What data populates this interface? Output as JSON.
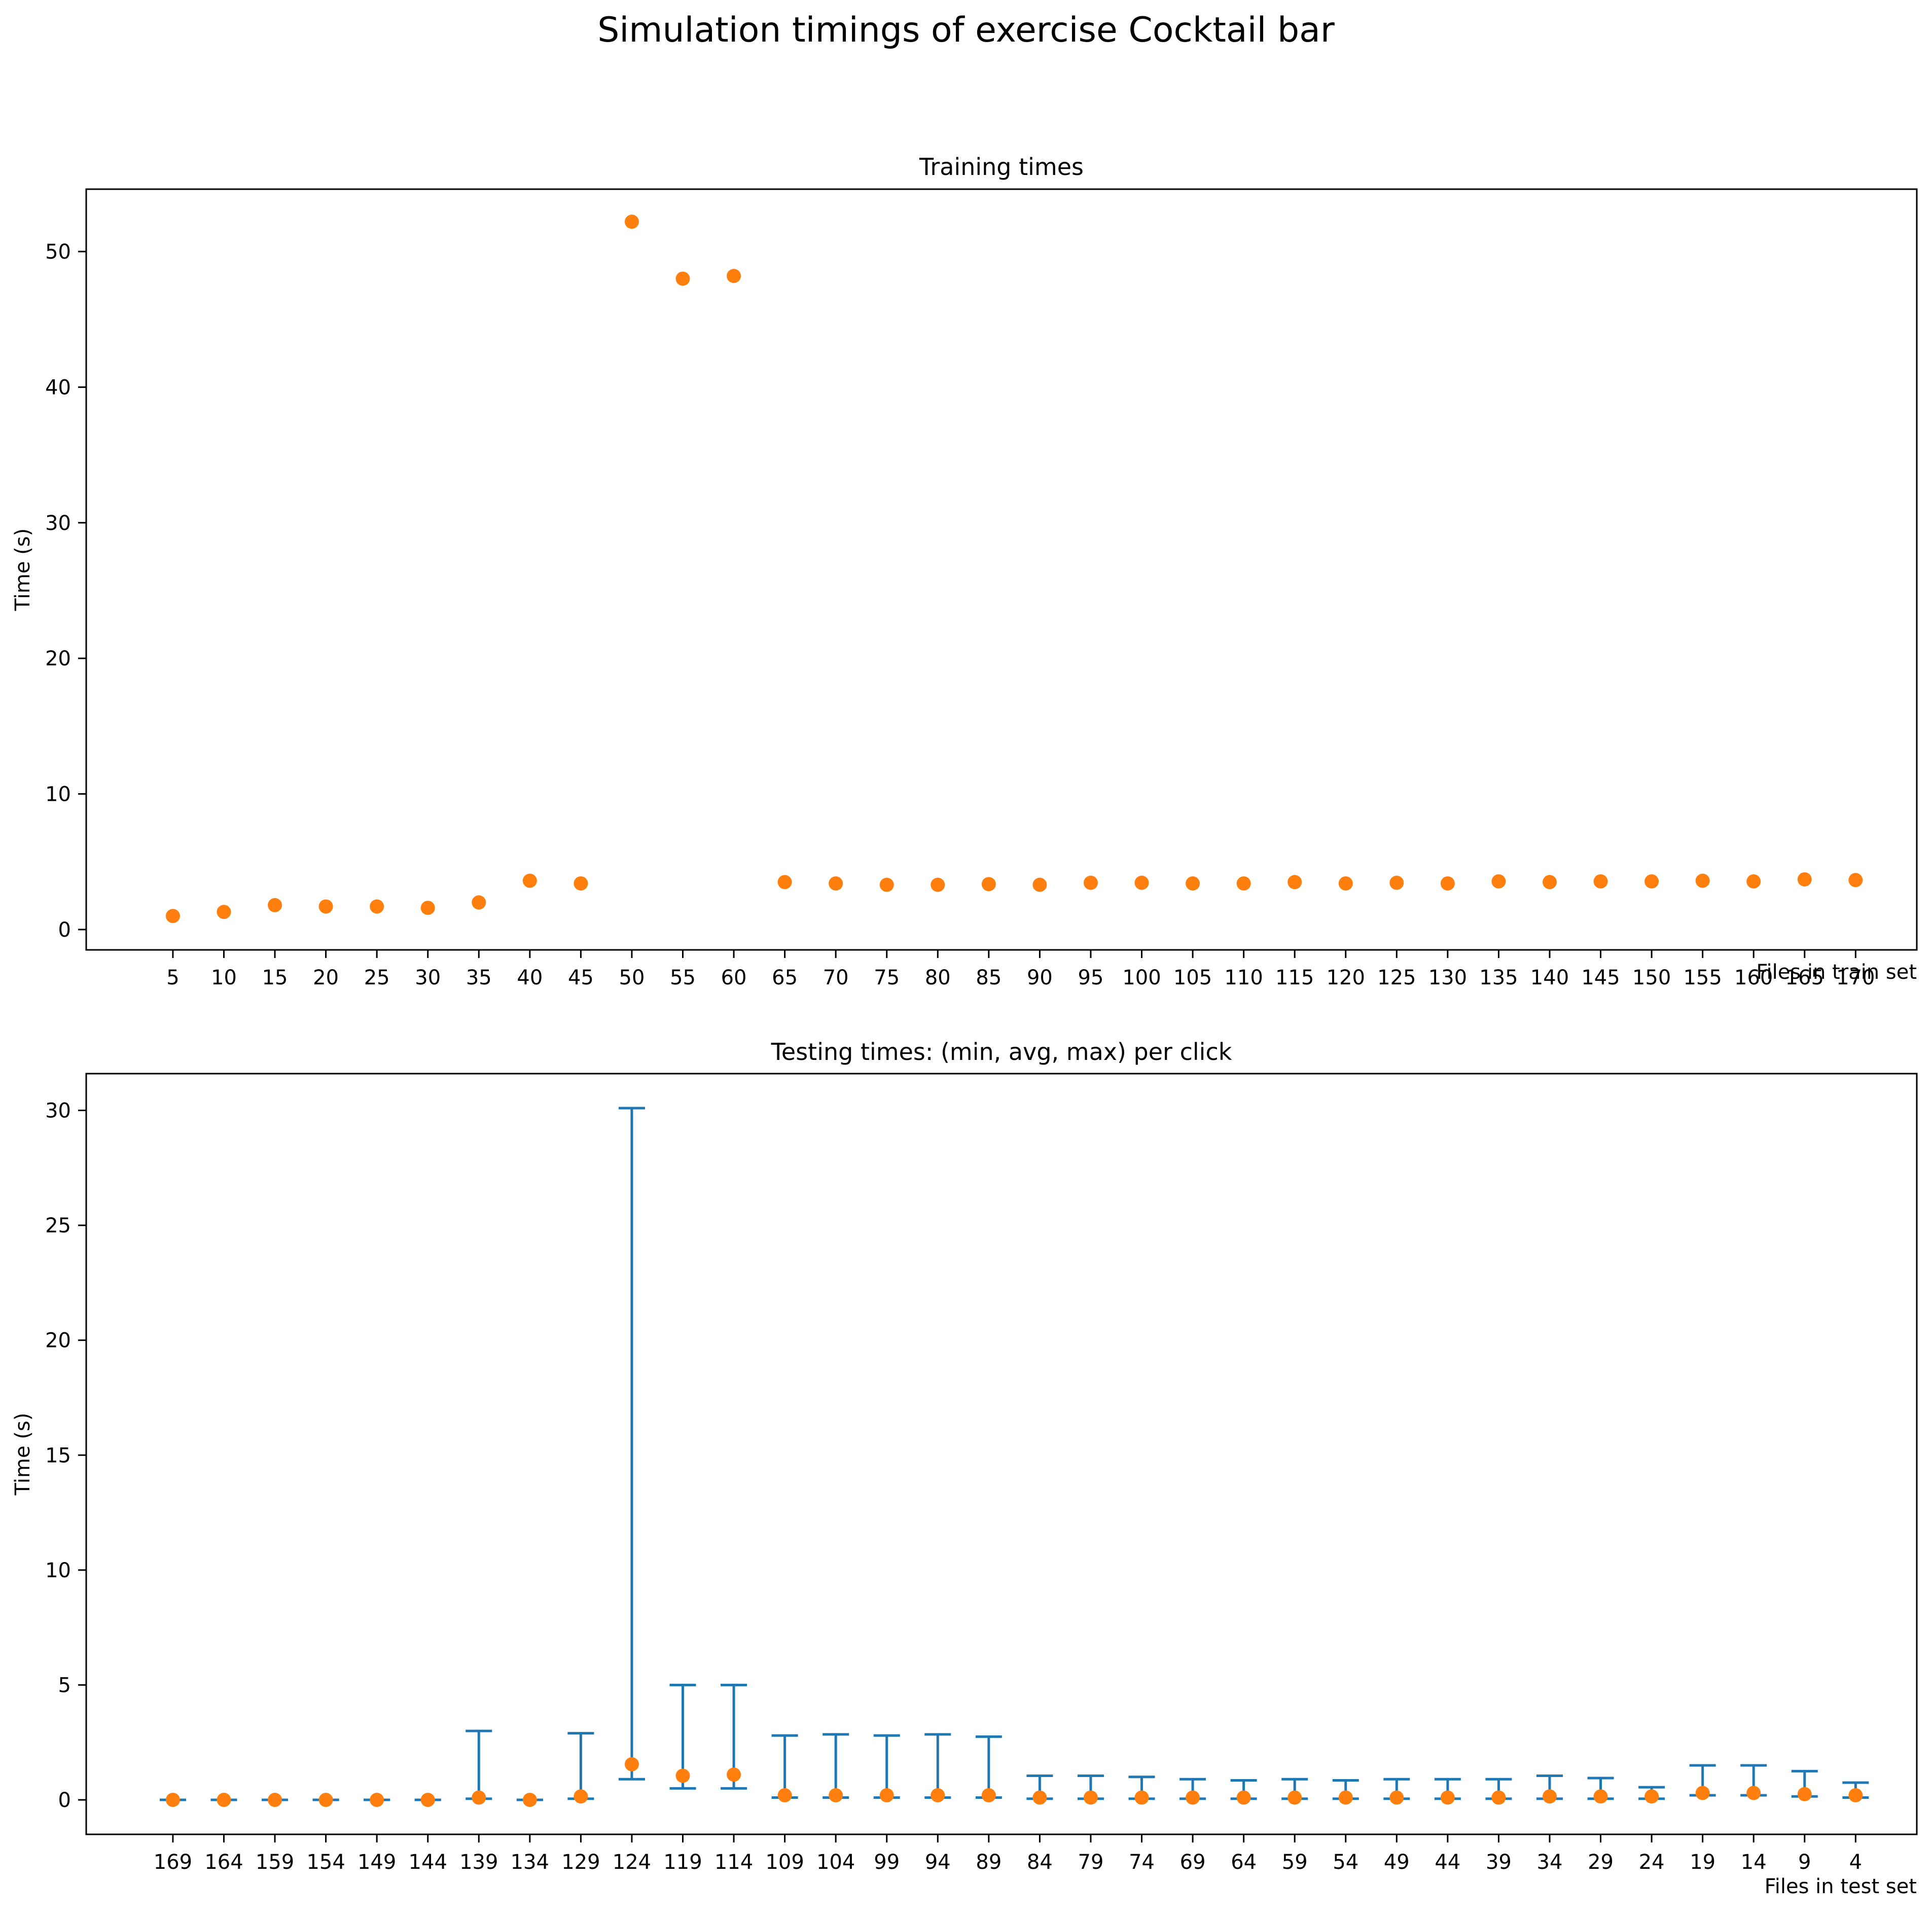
{
  "figure": {
    "title": "Simulation timings of exercise Cocktail bar"
  },
  "colors": {
    "points": "#ff7f0e",
    "errorbars": "#1f77b4",
    "axes": "#000000"
  },
  "chart_data": [
    {
      "type": "scatter",
      "title": "Training times",
      "xlabel": "Files in train set",
      "ylabel": "Time (s)",
      "ylim": [
        -1.5,
        54.6
      ],
      "yticks": [
        0,
        10,
        20,
        30,
        40,
        50
      ],
      "grid": false,
      "categories": [
        "5",
        "10",
        "15",
        "20",
        "25",
        "30",
        "35",
        "40",
        "45",
        "50",
        "55",
        "60",
        "65",
        "70",
        "75",
        "80",
        "85",
        "90",
        "95",
        "100",
        "105",
        "110",
        "115",
        "120",
        "125",
        "130",
        "135",
        "140",
        "145",
        "150",
        "155",
        "160",
        "165",
        "170"
      ],
      "series": [
        {
          "values": [
            1.0,
            1.3,
            1.8,
            1.7,
            1.7,
            1.6,
            2.0,
            3.6,
            3.4,
            52.2,
            48.0,
            48.2,
            3.5,
            3.4,
            3.3,
            3.3,
            3.35,
            3.3,
            3.45,
            3.45,
            3.4,
            3.4,
            3.5,
            3.4,
            3.45,
            3.4,
            3.55,
            3.5,
            3.55,
            3.55,
            3.6,
            3.55,
            3.7,
            3.65
          ]
        }
      ]
    },
    {
      "type": "scatter",
      "title": "Testing times: (min, avg, max) per click",
      "xlabel": "Files in test set",
      "ylabel": "Time (s)",
      "ylim": [
        -1.5,
        31.6
      ],
      "yticks": [
        0,
        5,
        10,
        15,
        20,
        25,
        30
      ],
      "grid": false,
      "categories": [
        "169",
        "164",
        "159",
        "154",
        "149",
        "144",
        "139",
        "134",
        "129",
        "124",
        "119",
        "114",
        "109",
        "104",
        "99",
        "94",
        "89",
        "84",
        "79",
        "74",
        "69",
        "64",
        "59",
        "54",
        "49",
        "44",
        "39",
        "34",
        "29",
        "24",
        "19",
        "14",
        "9",
        "4"
      ],
      "avg": [
        0.0,
        0.0,
        0.0,
        0.0,
        0.0,
        0.0,
        0.1,
        0.0,
        0.15,
        1.55,
        1.05,
        1.1,
        0.2,
        0.2,
        0.2,
        0.2,
        0.2,
        0.1,
        0.1,
        0.1,
        0.1,
        0.1,
        0.1,
        0.1,
        0.1,
        0.1,
        0.1,
        0.15,
        0.15,
        0.15,
        0.3,
        0.3,
        0.25,
        0.2
      ],
      "min": [
        0.0,
        0.0,
        0.0,
        0.0,
        0.0,
        0.0,
        0.05,
        0.0,
        0.05,
        0.9,
        0.5,
        0.5,
        0.1,
        0.1,
        0.1,
        0.1,
        0.1,
        0.05,
        0.05,
        0.05,
        0.05,
        0.05,
        0.05,
        0.05,
        0.05,
        0.05,
        0.05,
        0.05,
        0.05,
        0.05,
        0.2,
        0.2,
        0.15,
        0.1
      ],
      "max": [
        0.0,
        0.0,
        0.0,
        0.0,
        0.0,
        0.0,
        3.0,
        0.0,
        2.9,
        30.1,
        5.0,
        5.0,
        2.8,
        2.85,
        2.8,
        2.85,
        2.75,
        1.05,
        1.05,
        1.0,
        0.9,
        0.85,
        0.9,
        0.85,
        0.9,
        0.9,
        0.9,
        1.05,
        0.95,
        0.55,
        1.5,
        1.5,
        1.25,
        0.75
      ]
    }
  ]
}
